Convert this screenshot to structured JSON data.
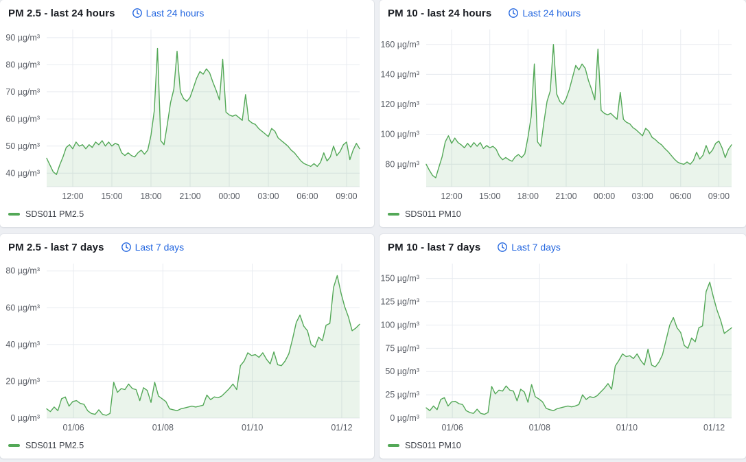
{
  "page": {
    "background": "#edeff3",
    "panel_background": "#ffffff"
  },
  "colors": {
    "series_green": "#53a857",
    "series_fill": "rgba(83,168,87,0.12)",
    "link_blue": "#2467e0",
    "grid": "#e8ebf0",
    "axis_text": "#585c64",
    "title_text": "#1a1d23"
  },
  "icons": {
    "time_range": "clock-icon",
    "legend_swatch": "series-line-dash"
  },
  "chart_data": [
    {
      "type": "area",
      "title": "PM 2.5 - last 24 hours",
      "time_range_label": "Last 24 hours",
      "unit": "µg/m³",
      "ylim": [
        35,
        93
      ],
      "grid": true,
      "legend_position": "bottom",
      "yticks": [
        {
          "v": 40,
          "label": "40 µg/m³"
        },
        {
          "v": 50,
          "label": "50 µg/m³"
        },
        {
          "v": 60,
          "label": "60 µg/m³"
        },
        {
          "v": 70,
          "label": "70 µg/m³"
        },
        {
          "v": 80,
          "label": "80 µg/m³"
        },
        {
          "v": 90,
          "label": "90 µg/m³"
        }
      ],
      "xticks": [
        {
          "f": 0.0833,
          "label": "12:00"
        },
        {
          "f": 0.2083,
          "label": "15:00"
        },
        {
          "f": 0.3333,
          "label": "18:00"
        },
        {
          "f": 0.4583,
          "label": "21:00"
        },
        {
          "f": 0.5833,
          "label": "00:00"
        },
        {
          "f": 0.7083,
          "label": "03:00"
        },
        {
          "f": 0.8333,
          "label": "06:00"
        },
        {
          "f": 0.9583,
          "label": "09:00"
        }
      ],
      "series": [
        {
          "name": "SDS011 PM2.5",
          "color": "#53a857",
          "fill": "rgba(83,168,87,0.12)",
          "interval_minutes": 15,
          "values": [
            45.5,
            43,
            40.5,
            39.5,
            43,
            46,
            49.5,
            50.5,
            49,
            51.5,
            50,
            50.5,
            49,
            50.5,
            49.5,
            51.5,
            50.5,
            52,
            50,
            51.5,
            50,
            51,
            50.5,
            47.5,
            46.5,
            47.5,
            46.5,
            46,
            47.5,
            48.5,
            47,
            48.5,
            54,
            63,
            86,
            52,
            50.5,
            58,
            66,
            71,
            85,
            70,
            67.5,
            66.5,
            68,
            71.5,
            75,
            77.5,
            76.5,
            78.5,
            77,
            73.5,
            70.5,
            67,
            82,
            62.5,
            61.5,
            61,
            61.5,
            60.5,
            59.5,
            69,
            59.5,
            58.5,
            58,
            56.5,
            55.5,
            54.5,
            53.5,
            56.5,
            55.5,
            53,
            52,
            51,
            50,
            48.5,
            47.5,
            46,
            44.5,
            43.5,
            43,
            42.5,
            43.5,
            42.5,
            44,
            47.5,
            44.5,
            46,
            50,
            46.5,
            48,
            50.5,
            51.5,
            45,
            48.5,
            51,
            49
          ]
        }
      ]
    },
    {
      "type": "area",
      "title": "PM 10 - last 24 hours",
      "time_range_label": "Last 24 hours",
      "unit": "µg/m³",
      "ylim": [
        65,
        170
      ],
      "grid": true,
      "legend_position": "bottom",
      "yticks": [
        {
          "v": 80,
          "label": "80 µg/m³"
        },
        {
          "v": 100,
          "label": "100 µg/m³"
        },
        {
          "v": 120,
          "label": "120 µg/m³"
        },
        {
          "v": 140,
          "label": "140 µg/m³"
        },
        {
          "v": 160,
          "label": "160 µg/m³"
        }
      ],
      "xticks": [
        {
          "f": 0.0833,
          "label": "12:00"
        },
        {
          "f": 0.2083,
          "label": "15:00"
        },
        {
          "f": 0.3333,
          "label": "18:00"
        },
        {
          "f": 0.4583,
          "label": "21:00"
        },
        {
          "f": 0.5833,
          "label": "00:00"
        },
        {
          "f": 0.7083,
          "label": "03:00"
        },
        {
          "f": 0.8333,
          "label": "06:00"
        },
        {
          "f": 0.9583,
          "label": "09:00"
        }
      ],
      "series": [
        {
          "name": "SDS011 PM10",
          "color": "#53a857",
          "fill": "rgba(83,168,87,0.12)",
          "interval_minutes": 15,
          "values": [
            80,
            76,
            72.5,
            71,
            78,
            85,
            95,
            99,
            94,
            97.5,
            94.5,
            93,
            91,
            94,
            91.5,
            94.5,
            92,
            94.5,
            90.5,
            92.5,
            91,
            92,
            90,
            85.5,
            83,
            84.5,
            83,
            82,
            85,
            86.5,
            84.5,
            87,
            98,
            112,
            147,
            95,
            92,
            108,
            122,
            129,
            160,
            127,
            122,
            120,
            124,
            130,
            138,
            146,
            143,
            147,
            144,
            136,
            130,
            123,
            157,
            116,
            114,
            113,
            114,
            112,
            110,
            128,
            110,
            108,
            107,
            104.5,
            103,
            101,
            99,
            104,
            102,
            98,
            96.5,
            94.5,
            93,
            90.5,
            88.5,
            86,
            83.5,
            81.5,
            80.5,
            80,
            81.5,
            80,
            82.5,
            88,
            83.5,
            86,
            92.5,
            87,
            89.5,
            94,
            95.5,
            91,
            84.5,
            90,
            93
          ]
        }
      ]
    },
    {
      "type": "area",
      "title": "PM 2.5 - last 7 days",
      "time_range_label": "Last 7 days",
      "unit": "µg/m³",
      "ylim": [
        0,
        84
      ],
      "grid": true,
      "legend_position": "bottom",
      "yticks": [
        {
          "v": 0,
          "label": "0 µg/m³"
        },
        {
          "v": 20,
          "label": "20 µg/m³"
        },
        {
          "v": 40,
          "label": "40 µg/m³"
        },
        {
          "v": 60,
          "label": "60 µg/m³"
        },
        {
          "v": 80,
          "label": "80 µg/m³"
        }
      ],
      "xticks": [
        {
          "f": 0.0857,
          "label": "01/06"
        },
        {
          "f": 0.3714,
          "label": "01/08"
        },
        {
          "f": 0.6571,
          "label": "01/10"
        },
        {
          "f": 0.9429,
          "label": "01/12"
        }
      ],
      "series": [
        {
          "name": "SDS011 PM2.5",
          "color": "#53a857",
          "fill": "rgba(83,168,87,0.12)",
          "interval_minutes": 120,
          "values": [
            5,
            3.5,
            6,
            4,
            10.5,
            11.5,
            6.5,
            9,
            9.5,
            8,
            7.5,
            4,
            2.5,
            2,
            4.5,
            2,
            1.5,
            2.5,
            19.5,
            14,
            16,
            15.5,
            18.5,
            16,
            15.5,
            9.5,
            16.5,
            15,
            8.5,
            19.5,
            12,
            10.5,
            9,
            5,
            4.5,
            4,
            5,
            5.5,
            6,
            6.5,
            6,
            6.5,
            7,
            12.5,
            10,
            11.5,
            11,
            12,
            14,
            16,
            18.5,
            15.5,
            28.5,
            31,
            35.5,
            34,
            34.5,
            33,
            35.5,
            32,
            29.5,
            36,
            29,
            28.5,
            31,
            35,
            43,
            52,
            56,
            50,
            47.5,
            40,
            38.5,
            44,
            42,
            50.5,
            51.5,
            71,
            77.5,
            68,
            60.5,
            55,
            47.5,
            49,
            51
          ]
        }
      ]
    },
    {
      "type": "area",
      "title": "PM 10 - last 7 days",
      "time_range_label": "Last 7 days",
      "unit": "µg/m³",
      "ylim": [
        0,
        166
      ],
      "grid": true,
      "legend_position": "bottom",
      "yticks": [
        {
          "v": 0,
          "label": "0 µg/m³"
        },
        {
          "v": 25,
          "label": "25 µg/m³"
        },
        {
          "v": 50,
          "label": "50 µg/m³"
        },
        {
          "v": 75,
          "label": "75 µg/m³"
        },
        {
          "v": 100,
          "label": "100 µg/m³"
        },
        {
          "v": 125,
          "label": "125 µg/m³"
        },
        {
          "v": 150,
          "label": "150 µg/m³"
        }
      ],
      "xticks": [
        {
          "f": 0.0857,
          "label": "01/06"
        },
        {
          "f": 0.3714,
          "label": "01/08"
        },
        {
          "f": 0.6571,
          "label": "01/10"
        },
        {
          "f": 0.9429,
          "label": "01/12"
        }
      ],
      "series": [
        {
          "name": "SDS011 PM10",
          "color": "#53a857",
          "fill": "rgba(83,168,87,0.12)",
          "interval_minutes": 120,
          "values": [
            11,
            8,
            13,
            9,
            20,
            22,
            13,
            17.5,
            18,
            15.5,
            14.5,
            8,
            6,
            5,
            9.5,
            5,
            4,
            6,
            34,
            26,
            30,
            29,
            34.5,
            30,
            29,
            18.5,
            31,
            28,
            17,
            36,
            23,
            20.5,
            17.5,
            10.5,
            9,
            8,
            10,
            11,
            12,
            13,
            12,
            13,
            14.5,
            25,
            20,
            23,
            22,
            24,
            28,
            32,
            37,
            31,
            56,
            62,
            69,
            66,
            67,
            64,
            69,
            62,
            57,
            74,
            57,
            55,
            60,
            68,
            84,
            100,
            108,
            97,
            92,
            78,
            75,
            86,
            82,
            97,
            99,
            136,
            146,
            130,
            116,
            105,
            91,
            94,
            97
          ]
        }
      ]
    }
  ]
}
